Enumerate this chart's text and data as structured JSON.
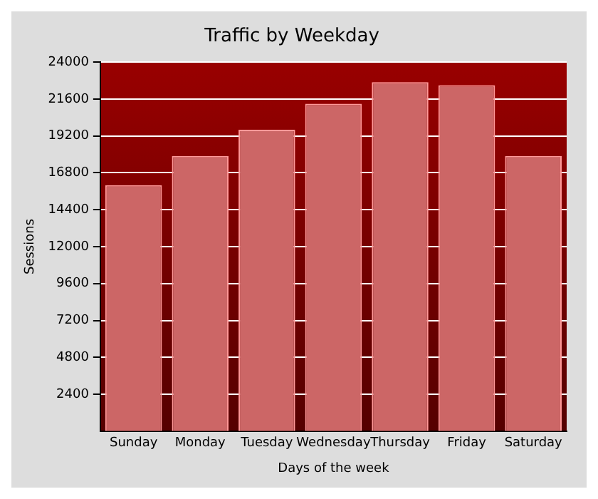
{
  "chart_data": {
    "type": "bar",
    "title": "Traffic by Weekday",
    "xlabel": "Days of the week",
    "ylabel": "Sessions",
    "categories": [
      "Sunday",
      "Monday",
      "Tuesday",
      "Wednesday",
      "Thursday",
      "Friday",
      "Saturday"
    ],
    "values": [
      16000,
      17900,
      19600,
      21300,
      22700,
      22500,
      17900
    ],
    "color": "#cc6666",
    "ylim": [
      0,
      24000
    ],
    "yticks": [
      2400,
      4800,
      7200,
      9600,
      12000,
      14400,
      16800,
      19200,
      21600,
      24000
    ],
    "grid": "y"
  }
}
